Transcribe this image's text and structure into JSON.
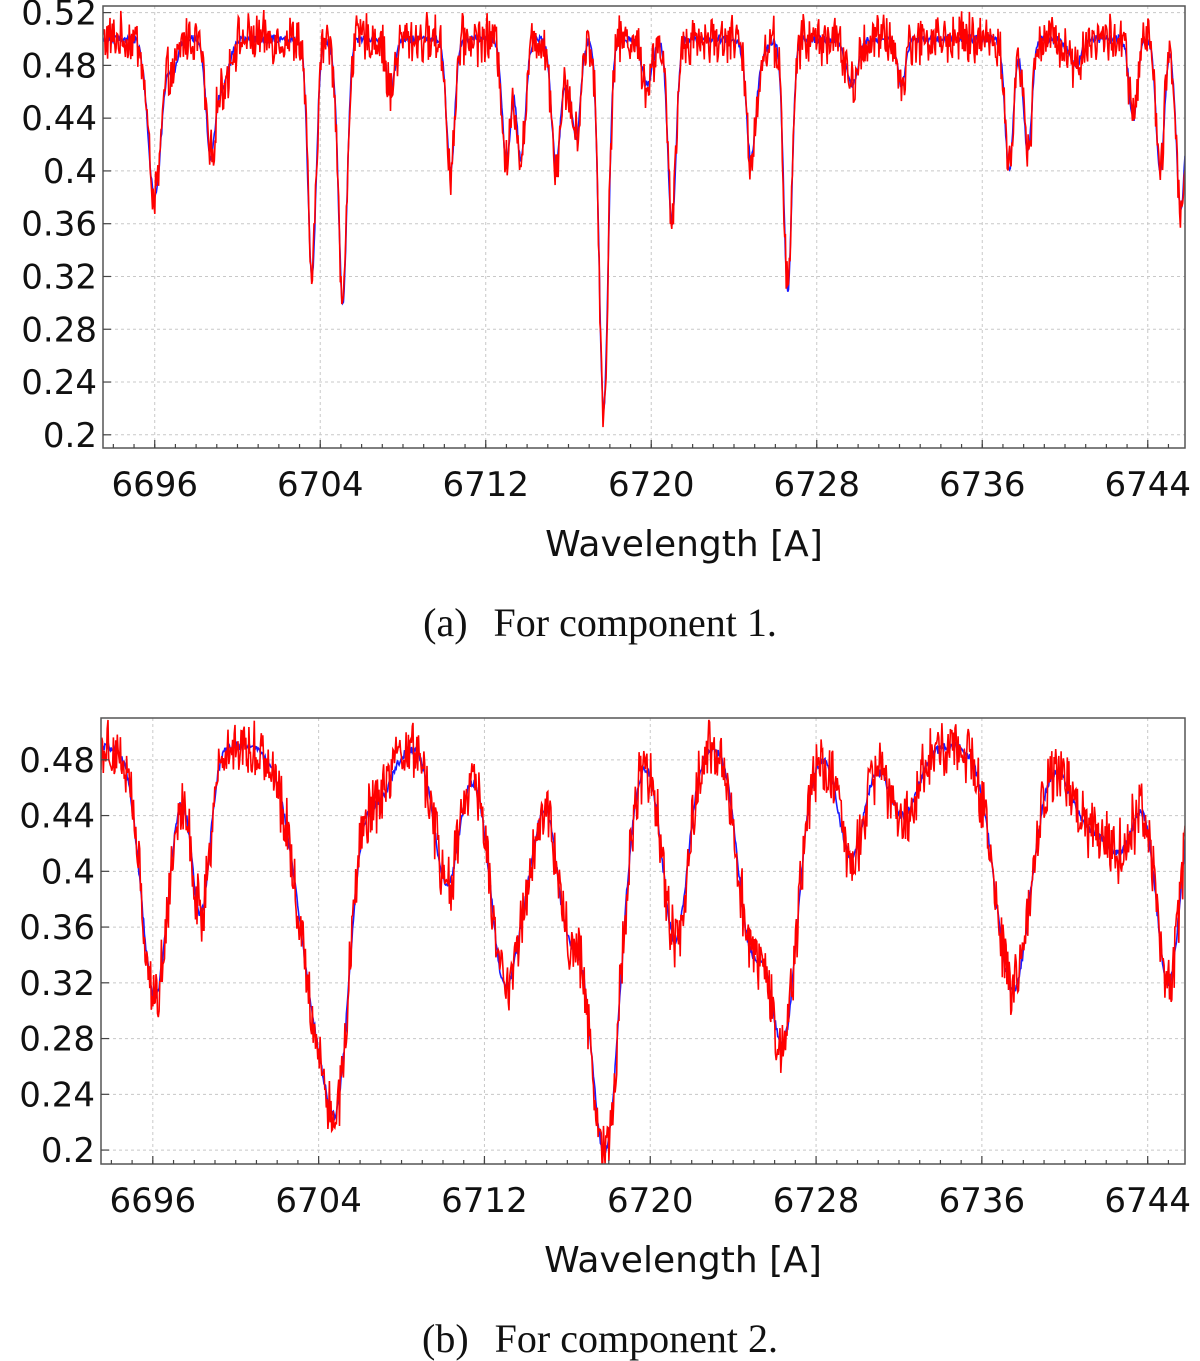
{
  "chart_data": [
    {
      "type": "line",
      "caption": "(a) For component 1.",
      "caption_label": "(a)",
      "caption_text": "For component 1.",
      "xlabel": "Wavelength [A]",
      "ylabel": "",
      "xlim": [
        6693.5,
        6745.8
      ],
      "ylim": [
        0.19,
        0.525
      ],
      "xticks": [
        6696,
        6704,
        6712,
        6720,
        6728,
        6736,
        6744
      ],
      "yticks": [
        0.2,
        0.24,
        0.28,
        0.32,
        0.36,
        0.4,
        0.44,
        0.48,
        0.52
      ],
      "grid": true,
      "continuum": 0.5,
      "lines": [
        {
          "x": 6696.0,
          "depth": 0.12,
          "width": 0.32
        },
        {
          "x": 6696.9,
          "depth": 0.025,
          "width": 0.2
        },
        {
          "x": 6698.7,
          "depth": 0.085,
          "width": 0.22
        },
        {
          "x": 6699.3,
          "depth": 0.035,
          "width": 0.3
        },
        {
          "x": 6703.6,
          "depth": 0.18,
          "width": 0.2
        },
        {
          "x": 6704.9,
          "depth": 0.02,
          "width": 0.25
        },
        {
          "x": 6705.1,
          "depth": 0.185,
          "width": 0.2
        },
        {
          "x": 6707.4,
          "depth": 0.04,
          "width": 0.2
        },
        {
          "x": 6710.3,
          "depth": 0.1,
          "width": 0.2
        },
        {
          "x": 6713.0,
          "depth": 0.095,
          "width": 0.2
        },
        {
          "x": 6713.7,
          "depth": 0.09,
          "width": 0.22
        },
        {
          "x": 6715.4,
          "depth": 0.095,
          "width": 0.22
        },
        {
          "x": 6716.0,
          "depth": 0.03,
          "width": 0.2
        },
        {
          "x": 6716.4,
          "depth": 0.07,
          "width": 0.2
        },
        {
          "x": 6717.7,
          "depth": 0.28,
          "width": 0.22
        },
        {
          "x": 6719.8,
          "depth": 0.035,
          "width": 0.25
        },
        {
          "x": 6721.0,
          "depth": 0.14,
          "width": 0.2
        },
        {
          "x": 6724.8,
          "depth": 0.065,
          "width": 0.2
        },
        {
          "x": 6725.0,
          "depth": 0.03,
          "width": 0.35
        },
        {
          "x": 6726.6,
          "depth": 0.19,
          "width": 0.2
        },
        {
          "x": 6729.7,
          "depth": 0.035,
          "width": 0.3
        },
        {
          "x": 6732.1,
          "depth": 0.035,
          "width": 0.2
        },
        {
          "x": 6737.3,
          "depth": 0.1,
          "width": 0.2
        },
        {
          "x": 6738.2,
          "depth": 0.085,
          "width": 0.2
        },
        {
          "x": 6740.5,
          "depth": 0.02,
          "width": 0.3
        },
        {
          "x": 6743.3,
          "depth": 0.06,
          "width": 0.2
        },
        {
          "x": 6744.6,
          "depth": 0.1,
          "width": 0.2
        },
        {
          "x": 6745.6,
          "depth": 0.13,
          "width": 0.22
        }
      ],
      "series": [
        {
          "color": "#1a1aff"
        },
        {
          "color": "#ff0000"
        }
      ]
    },
    {
      "type": "line",
      "caption": "(b) For component 2.",
      "caption_label": "(b)",
      "caption_text": "For component 2.",
      "xlabel": "Wavelength [A]",
      "ylabel": "",
      "xlim": [
        6693.5,
        6745.8
      ],
      "ylim": [
        0.19,
        0.51
      ],
      "xticks": [
        6696,
        6704,
        6712,
        6720,
        6728,
        6736,
        6744
      ],
      "yticks": [
        0.2,
        0.24,
        0.28,
        0.32,
        0.36,
        0.4,
        0.44,
        0.48
      ],
      "grid": true,
      "continuum": 0.49,
      "lines": [
        {
          "x": 6696.1,
          "depth": 0.18,
          "width": 0.65
        },
        {
          "x": 6698.3,
          "depth": 0.12,
          "width": 0.45
        },
        {
          "x": 6704.2,
          "depth": 0.21,
          "width": 1.1
        },
        {
          "x": 6705.0,
          "depth": 0.09,
          "width": 0.5
        },
        {
          "x": 6707.0,
          "depth": 0.03,
          "width": 0.6
        },
        {
          "x": 6710.2,
          "depth": 0.1,
          "width": 0.6
        },
        {
          "x": 6713.0,
          "depth": 0.17,
          "width": 0.7
        },
        {
          "x": 6714.2,
          "depth": 0.05,
          "width": 0.5
        },
        {
          "x": 6716.0,
          "depth": 0.12,
          "width": 0.6
        },
        {
          "x": 6717.8,
          "depth": 0.29,
          "width": 0.75
        },
        {
          "x": 6721.2,
          "depth": 0.14,
          "width": 0.6
        },
        {
          "x": 6724.8,
          "depth": 0.13,
          "width": 0.6
        },
        {
          "x": 6726.4,
          "depth": 0.21,
          "width": 0.7
        },
        {
          "x": 6729.7,
          "depth": 0.08,
          "width": 0.6
        },
        {
          "x": 6732.2,
          "depth": 0.05,
          "width": 0.7
        },
        {
          "x": 6737.5,
          "depth": 0.175,
          "width": 0.85
        },
        {
          "x": 6741.0,
          "depth": 0.05,
          "width": 0.8
        },
        {
          "x": 6742.7,
          "depth": 0.07,
          "width": 0.8
        },
        {
          "x": 6745.0,
          "depth": 0.17,
          "width": 0.6
        }
      ],
      "series": [
        {
          "color": "#1a1aff"
        },
        {
          "color": "#ff0000"
        }
      ]
    }
  ]
}
